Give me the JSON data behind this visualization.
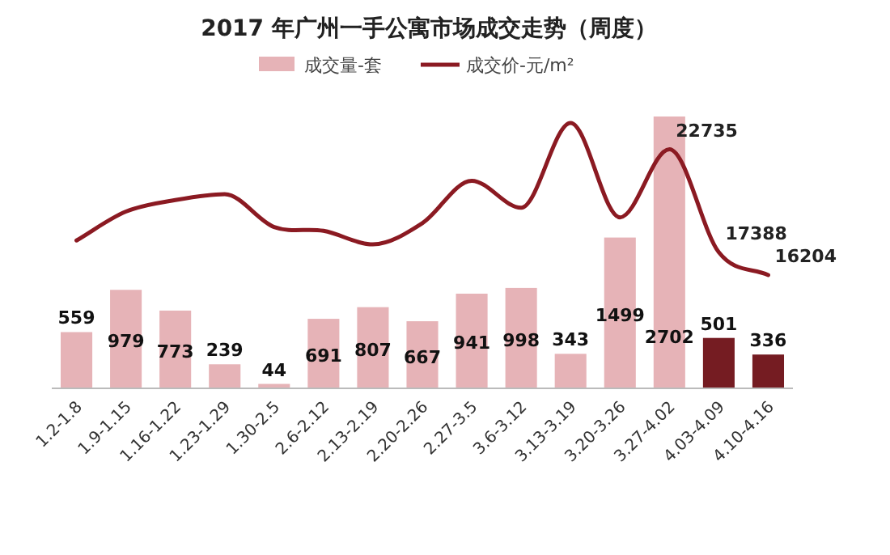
{
  "chart_data": {
    "type": "bar",
    "title": "2017 年广州一手公寓市场成交走势（周度）",
    "legend": "top",
    "data_labels": true,
    "categories": [
      "1.2-1.8",
      "1.9-1.15",
      "1.16-1.22",
      "1.23-1.29",
      "1.30-2.5",
      "2.6-2.12",
      "2.13-2.19",
      "2.20-2.26",
      "2.27-3.5",
      "3.6-3.12",
      "3.13-3.19",
      "3.20-3.26",
      "3.27-4.02",
      "4.03-4.09",
      "4.10-4.16"
    ],
    "series": [
      {
        "name": "成交量-套",
        "color": "#e6b3b7",
        "colors": [
          "#e6b3b7",
          "#e6b3b7",
          "#e6b3b7",
          "#e6b3b7",
          "#e6b3b7",
          "#e6b3b7",
          "#e6b3b7",
          "#e6b3b7",
          "#e6b3b7",
          "#e6b3b7",
          "#e6b3b7",
          "#e6b3b7",
          "#e6b3b7",
          "#751c22",
          "#751c22"
        ],
        "values": [
          559,
          979,
          773,
          239,
          44,
          691,
          807,
          667,
          941,
          998,
          343,
          1499,
          2702,
          501,
          336
        ]
      },
      {
        "name": "成交价-元/m²",
        "type": "line",
        "axis": "y2",
        "color": "#8b1a22",
        "values": [
          18000,
          19500,
          20100,
          20400,
          18700,
          18500,
          17800,
          18900,
          21100,
          19700,
          24100,
          19200,
          22735,
          17388,
          16204
        ],
        "value_labels": [
          null,
          null,
          null,
          null,
          null,
          null,
          null,
          null,
          null,
          null,
          null,
          null,
          "22735",
          "17388",
          "16204"
        ]
      }
    ]
  }
}
